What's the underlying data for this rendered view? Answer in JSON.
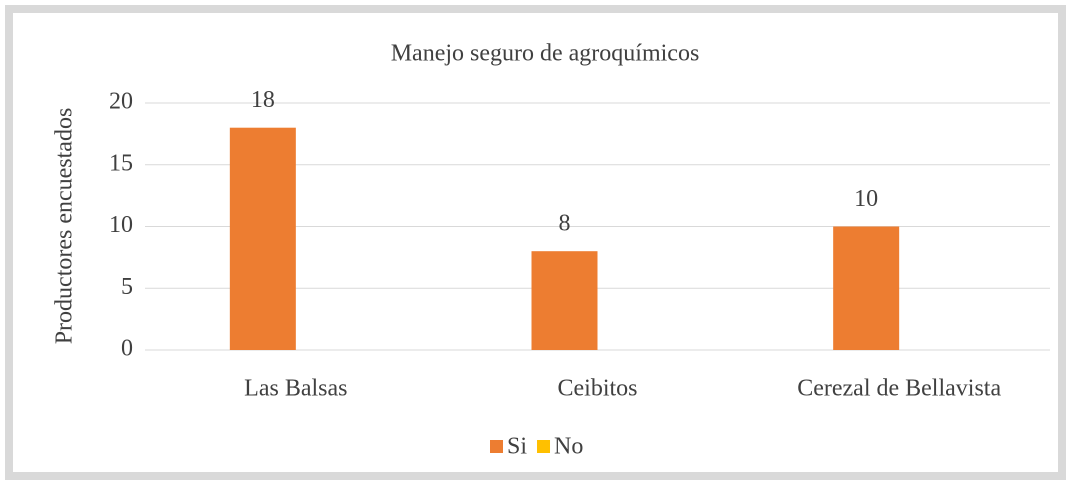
{
  "chart_data": {
    "type": "bar",
    "title": "Manejo seguro de agroquímicos",
    "y_label": "Productores encuestados",
    "categories": [
      "Las Balsas",
      "Ceibitos",
      "Cerezal de Bellavista"
    ],
    "series": [
      {
        "name": "Si",
        "color": "#ed7d31",
        "values": [
          18,
          8,
          10
        ]
      },
      {
        "name": "No",
        "color": "#ffc000",
        "values": [
          0,
          0,
          0
        ]
      }
    ],
    "ylim": [
      0,
      20
    ],
    "yticks": [
      0,
      5,
      10,
      15,
      20
    ],
    "grid": true,
    "legend": "bottom"
  }
}
